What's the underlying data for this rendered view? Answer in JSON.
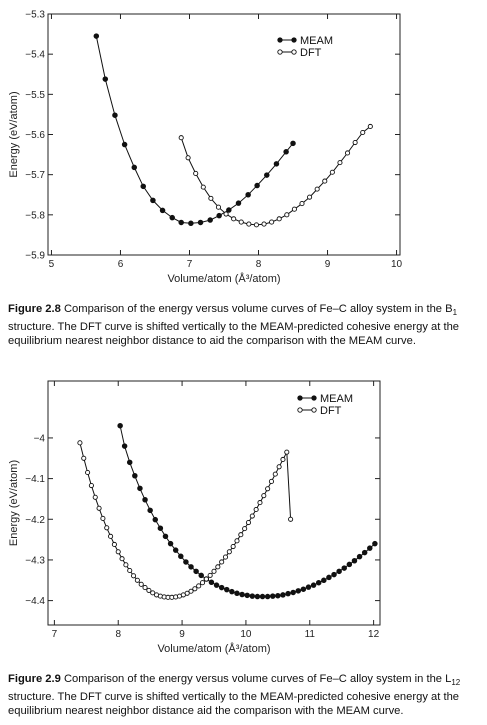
{
  "chart_data": [
    {
      "type": "line",
      "xlabel": "Volume/atom (Å³/atom)",
      "ylabel": "Energy (eV/atom)",
      "xlim": [
        4.95,
        10.05
      ],
      "ylim": [
        -5.9,
        -5.3
      ],
      "xticks": [
        5,
        6,
        7,
        8,
        9,
        10
      ],
      "yticks": [
        -5.3,
        -5.4,
        -5.5,
        -5.6,
        -5.7,
        -5.8,
        -5.9
      ],
      "xtick_labels": [
        "5",
        "6",
        "7",
        "8",
        "9",
        "10"
      ],
      "ytick_labels": [
        "−5.3",
        "−5.4",
        "−5.5",
        "−5.6",
        "−5.7",
        "−5.8",
        "−5.9"
      ],
      "legend": "top-right",
      "grid": false,
      "series": [
        {
          "name": "MEAM",
          "marker": "filled-circle",
          "color": "#111111",
          "x": [
            5.65,
            5.78,
            5.92,
            6.06,
            6.2,
            6.33,
            6.47,
            6.61,
            6.75,
            6.88,
            7.02,
            7.16,
            7.3,
            7.43,
            7.57,
            7.71,
            7.85,
            7.98,
            8.12,
            8.26,
            8.4,
            8.5
          ],
          "y": [
            -5.355,
            -5.462,
            -5.552,
            -5.625,
            -5.682,
            -5.729,
            -5.764,
            -5.789,
            -5.807,
            -5.819,
            -5.821,
            -5.819,
            -5.813,
            -5.802,
            -5.788,
            -5.771,
            -5.75,
            -5.727,
            -5.701,
            -5.673,
            -5.643,
            -5.622
          ]
        },
        {
          "name": "DFT",
          "marker": "open-circle",
          "color": "#111111",
          "x": [
            6.88,
            6.98,
            7.09,
            7.2,
            7.31,
            7.42,
            7.53,
            7.64,
            7.75,
            7.86,
            7.97,
            8.08,
            8.19,
            8.3,
            8.41,
            8.52,
            8.63,
            8.74,
            8.85,
            8.96,
            9.07,
            9.18,
            9.29,
            9.4,
            9.51,
            9.62
          ],
          "y": [
            -5.608,
            -5.658,
            -5.697,
            -5.731,
            -5.759,
            -5.781,
            -5.798,
            -5.81,
            -5.818,
            -5.823,
            -5.825,
            -5.823,
            -5.818,
            -5.81,
            -5.8,
            -5.786,
            -5.772,
            -5.756,
            -5.736,
            -5.716,
            -5.694,
            -5.67,
            -5.646,
            -5.62,
            -5.595,
            -5.58
          ]
        }
      ]
    },
    {
      "type": "line",
      "xlabel": "Volume/atom (Å³/atom)",
      "ylabel": "Energy (eV/atom)",
      "xlim": [
        6.9,
        12.1
      ],
      "ylim": [
        -4.46,
        -3.86
      ],
      "xticks": [
        7,
        8,
        9,
        10,
        11,
        12
      ],
      "yticks": [
        -4.0,
        -4.1,
        -4.2,
        -4.3,
        -4.4
      ],
      "xtick_labels": [
        "7",
        "8",
        "9",
        "10",
        "11",
        "12"
      ],
      "ytick_labels": [
        "−4",
        "−4.1",
        "−4.2",
        "−4.3",
        "−4.4"
      ],
      "legend": "top-right",
      "grid": false,
      "series": [
        {
          "name": "MEAM",
          "marker": "filled-circle",
          "color": "#111111",
          "x": [
            8.03,
            8.1,
            8.18,
            8.26,
            8.34,
            8.42,
            8.5,
            8.58,
            8.66,
            8.74,
            8.82,
            8.9,
            8.98,
            9.06,
            9.14,
            9.22,
            9.3,
            9.38,
            9.46,
            9.54,
            9.62,
            9.7,
            9.78,
            9.86,
            9.94,
            10.02,
            10.1,
            10.18,
            10.26,
            10.34,
            10.42,
            10.5,
            10.58,
            10.66,
            10.74,
            10.82,
            10.9,
            10.98,
            11.06,
            11.14,
            11.22,
            11.3,
            11.38,
            11.46,
            11.54,
            11.62,
            11.7,
            11.78,
            11.86,
            11.94,
            12.02
          ],
          "y": [
            -3.97,
            -4.02,
            -4.06,
            -4.093,
            -4.124,
            -4.152,
            -4.178,
            -4.201,
            -4.222,
            -4.242,
            -4.26,
            -4.276,
            -4.291,
            -4.305,
            -4.317,
            -4.328,
            -4.338,
            -4.347,
            -4.355,
            -4.362,
            -4.368,
            -4.373,
            -4.378,
            -4.382,
            -4.385,
            -4.387,
            -4.389,
            -4.39,
            -4.39,
            -4.39,
            -4.389,
            -4.388,
            -4.386,
            -4.383,
            -4.38,
            -4.376,
            -4.372,
            -4.367,
            -4.362,
            -4.356,
            -4.35,
            -4.343,
            -4.336,
            -4.328,
            -4.32,
            -4.311,
            -4.302,
            -4.292,
            -4.282,
            -4.271,
            -4.26
          ]
        },
        {
          "name": "DFT",
          "marker": "open-circle",
          "color": "#111111",
          "x": [
            7.4,
            7.46,
            7.52,
            7.58,
            7.64,
            7.7,
            7.76,
            7.82,
            7.88,
            7.94,
            8.0,
            8.06,
            8.12,
            8.18,
            8.24,
            8.3,
            8.36,
            8.42,
            8.48,
            8.54,
            8.6,
            8.66,
            8.72,
            8.78,
            8.84,
            8.9,
            8.96,
            9.02,
            9.08,
            9.14,
            9.2,
            9.26,
            9.32,
            9.38,
            9.44,
            9.5,
            9.56,
            9.62,
            9.68,
            9.74,
            9.8,
            9.86,
            9.92,
            9.98,
            10.04,
            10.1,
            10.16,
            10.22,
            10.28,
            10.34,
            10.4,
            10.46,
            10.52,
            10.58,
            10.64,
            10.7
          ],
          "y": [
            -4.012,
            -4.05,
            -4.085,
            -4.117,
            -4.146,
            -4.173,
            -4.198,
            -4.221,
            -4.242,
            -4.262,
            -4.28,
            -4.297,
            -4.312,
            -4.326,
            -4.339,
            -4.35,
            -4.36,
            -4.368,
            -4.375,
            -4.381,
            -4.386,
            -4.389,
            -4.391,
            -4.392,
            -4.392,
            -4.391,
            -4.389,
            -4.386,
            -4.382,
            -4.377,
            -4.371,
            -4.364,
            -4.356,
            -4.347,
            -4.338,
            -4.328,
            -4.317,
            -4.305,
            -4.293,
            -4.28,
            -4.267,
            -4.253,
            -4.238,
            -4.223,
            -4.208,
            -4.192,
            -4.176,
            -4.159,
            -4.142,
            -4.125,
            -4.107,
            -4.089,
            -4.071,
            -4.053,
            -4.035,
            -4.2
          ]
        }
      ]
    }
  ],
  "captions": [
    {
      "label": "Figure 2.8",
      "text_before": "Comparison of the energy versus volume curves of Fe–C alloy system in the B",
      "sub": "1",
      "text_after": " structure. The DFT curve is shifted vertically to the MEAM-predicted cohesive energy at the equilibrium nearest neighbor distance to aid the comparison with the MEAM curve."
    },
    {
      "label": "Figure 2.9",
      "text_before": "Comparison of the energy versus volume curves of Fe–C alloy system in the L",
      "sub": "12",
      "text_after": " structure. The DFT curve is shifted vertically to the MEAM-predicted cohesive energy at the equilibrium nearest neighbor distance aid the comparison with the MEAM curve."
    }
  ]
}
